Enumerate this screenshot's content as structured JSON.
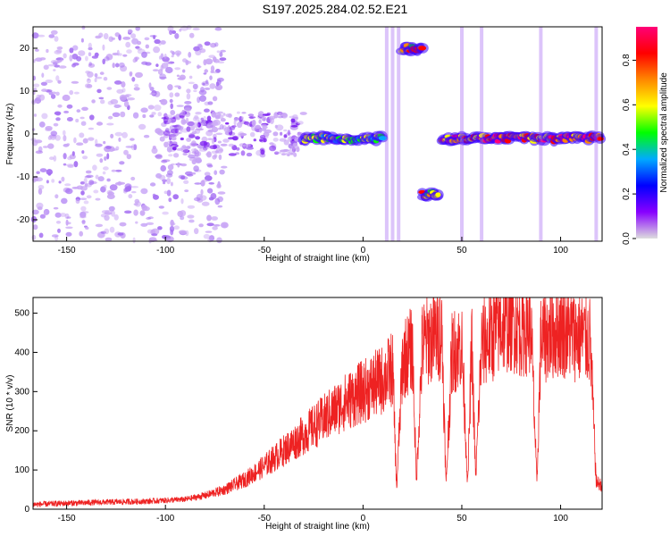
{
  "title": "S197.2025.284.02.52.E21",
  "colors": {
    "snr_line": "#ee2222",
    "colormap": [
      "#ffffff",
      "#8800ff",
      "#0000ff",
      "#00aaff",
      "#00ff00",
      "#ffff00",
      "#ff8800",
      "#ff0000",
      "#ff0077"
    ]
  },
  "chart_data": [
    {
      "type": "heatmap",
      "title": "",
      "xlabel": "Height of straight line (km)",
      "ylabel": "Frequency (Hz)",
      "xlim": [
        -167,
        121
      ],
      "ylim": [
        -25,
        25
      ],
      "xticks": [
        -150,
        -100,
        -50,
        0,
        50,
        100
      ],
      "yticks": [
        -20,
        -10,
        0,
        10,
        20
      ],
      "xtick_labels": [
        "-150",
        "-100",
        "-50",
        "0",
        "50",
        "100"
      ],
      "ytick_labels": [
        "-20",
        "-10",
        "0",
        "10",
        "20"
      ],
      "colorbar": {
        "label": "Normalized spectral amplitude",
        "range": [
          0,
          0.95
        ],
        "ticks": [
          0.0,
          0.2,
          0.4,
          0.6,
          0.8
        ],
        "tick_labels": [
          "0.0",
          "0.2",
          "0.4",
          "0.6",
          "0.8"
        ]
      },
      "features": [
        {
          "x_from": -167,
          "x_to": -70,
          "freq_from": -25,
          "freq_to": 25,
          "amplitude": 0.1,
          "description": "scattered noise"
        },
        {
          "x_from": -100,
          "x_to": -30,
          "freq_from": -5,
          "freq_to": 5,
          "amplitude": 0.25
        },
        {
          "x_from": -30,
          "x_to": 10,
          "freq_center": -1,
          "amplitude": 0.55
        },
        {
          "x_from": 20,
          "x_to": 30,
          "freq_center": 20,
          "amplitude": 0.8
        },
        {
          "x_from": 30,
          "x_to": 38,
          "freq_center": -14,
          "amplitude": 0.8
        },
        {
          "x_from": 40,
          "x_to": 120,
          "freq_center": -1,
          "amplitude": 0.9
        }
      ]
    },
    {
      "type": "line",
      "title": "",
      "xlabel": "Height of straight line (km)",
      "ylabel": "SNR (10 * v/v)",
      "xlim": [
        -167,
        121
      ],
      "ylim": [
        0,
        540
      ],
      "xticks": [
        -150,
        -100,
        -50,
        0,
        50,
        100
      ],
      "yticks": [
        0,
        100,
        200,
        300,
        400,
        500
      ],
      "xtick_labels": [
        "-150",
        "-100",
        "-50",
        "0",
        "50",
        "100"
      ],
      "ytick_labels": [
        "0",
        "100",
        "200",
        "300",
        "400",
        "500"
      ],
      "series": [
        {
          "name": "SNR",
          "x": [
            -167,
            -150,
            -130,
            -110,
            -90,
            -80,
            -70,
            -60,
            -50,
            -40,
            -30,
            -20,
            -10,
            0,
            10,
            15,
            17,
            20,
            25,
            27,
            30,
            35,
            40,
            42,
            45,
            50,
            53,
            55,
            57,
            60,
            65,
            70,
            75,
            80,
            85,
            88,
            90,
            95,
            100,
            105,
            110,
            115,
            118,
            121
          ],
          "y": [
            12,
            15,
            18,
            20,
            25,
            35,
            50,
            75,
            110,
            150,
            190,
            230,
            270,
            300,
            330,
            360,
            50,
            380,
            410,
            70,
            420,
            440,
            450,
            60,
            400,
            420,
            60,
            430,
            80,
            420,
            440,
            470,
            480,
            460,
            470,
            60,
            430,
            450,
            460,
            450,
            440,
            430,
            70,
            60
          ]
        }
      ]
    }
  ]
}
